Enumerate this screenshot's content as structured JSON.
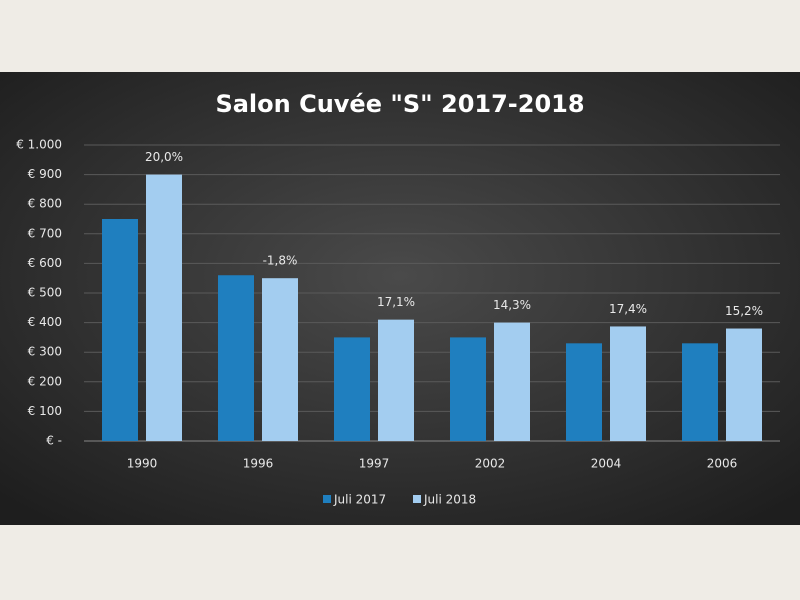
{
  "chart_data": {
    "type": "bar",
    "title": "Salon Cuvée \"S\" 2017-2018",
    "categories": [
      "1990",
      "1996",
      "1997",
      "2002",
      "2004",
      "2006"
    ],
    "series": [
      {
        "name": "Juli 2017",
        "color": "#1f7fbf",
        "values": [
          750,
          560,
          350,
          350,
          330,
          330
        ]
      },
      {
        "name": "Juli 2018",
        "color": "#a3cdf0",
        "values": [
          900,
          550,
          410,
          400,
          387,
          380
        ]
      }
    ],
    "change_labels": [
      "20,0%",
      "-1,8%",
      "17,1%",
      "14,3%",
      "17,4%",
      "15,2%"
    ],
    "ylim": [
      0,
      1000
    ],
    "yticks": [
      {
        "value": 0,
        "label": "€ -"
      },
      {
        "value": 100,
        "label": "€ 100"
      },
      {
        "value": 200,
        "label": "€ 200"
      },
      {
        "value": 300,
        "label": "€ 300"
      },
      {
        "value": 400,
        "label": "€ 400"
      },
      {
        "value": 500,
        "label": "€ 500"
      },
      {
        "value": 600,
        "label": "€ 600"
      },
      {
        "value": 700,
        "label": "€ 700"
      },
      {
        "value": 800,
        "label": "€ 800"
      },
      {
        "value": 900,
        "label": "€ 900"
      },
      {
        "value": 1000,
        "label": "€ 1.000"
      }
    ],
    "grid": true,
    "legend": "bottom"
  }
}
